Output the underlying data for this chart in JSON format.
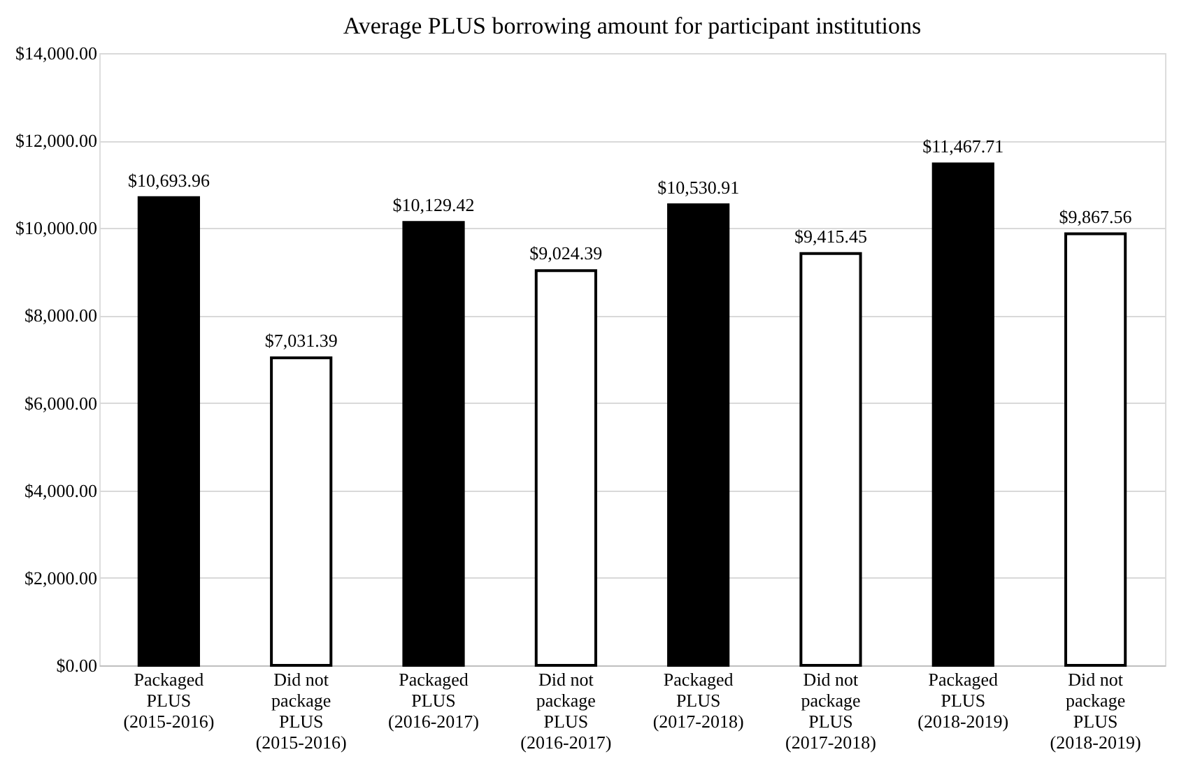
{
  "chart_data": {
    "type": "bar",
    "title": "Average PLUS borrowing amount for participant institutions",
    "categories": [
      "Packaged\nPLUS\n(2015-2016)",
      "Did not\npackage\nPLUS\n(2015-2016)",
      "Packaged\nPLUS\n(2016-2017)",
      "Did not\npackage\nPLUS\n(2016-2017)",
      "Packaged\nPLUS\n(2017-2018)",
      "Did not\npackage\nPLUS\n(2017-2018)",
      "Packaged\nPLUS\n(2018-2019)",
      "Did not\npackage\nPLUS\n(2018-2019)"
    ],
    "values": [
      10693.96,
      7031.39,
      10129.42,
      9024.39,
      10530.91,
      9415.45,
      11467.71,
      9867.56
    ],
    "value_labels": [
      "$10,693.96",
      "$7,031.39",
      "$10,129.42",
      "$9,024.39",
      "$10,530.91",
      "$9,415.45",
      "$11,467.71",
      "$9,867.56"
    ],
    "colors": [
      "#000000",
      "#ffffff",
      "#000000",
      "#ffffff",
      "#000000",
      "#ffffff",
      "#000000",
      "#ffffff"
    ],
    "ylim": [
      0,
      14000
    ],
    "yticks": [
      {
        "value": 0,
        "label": "$0.00"
      },
      {
        "value": 2000,
        "label": "$2,000.00"
      },
      {
        "value": 4000,
        "label": "$4,000.00"
      },
      {
        "value": 6000,
        "label": "$6,000.00"
      },
      {
        "value": 8000,
        "label": "$8,000.00"
      },
      {
        "value": 10000,
        "label": "$10,000.00"
      },
      {
        "value": 12000,
        "label": "$12,000.00"
      },
      {
        "value": 14000,
        "label": "$14,000.00"
      }
    ],
    "grid": "y"
  }
}
